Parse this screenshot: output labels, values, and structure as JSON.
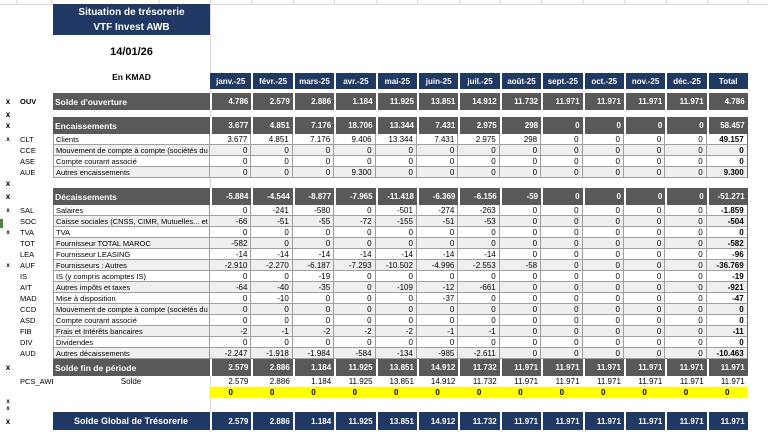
{
  "title": {
    "line1": "Situation de trésorerie",
    "line2": "VTF Invest AWB"
  },
  "date": "14/01/26",
  "unit": "En KMAD",
  "colors": {
    "navy": "#1F3864",
    "section_gray": "#595959",
    "stripe_gray": "#EFEFEF",
    "highlight_yellow": "#FFFF00",
    "green_mark": "#538135"
  },
  "columns": [
    "janv.-25",
    "févr.-25",
    "mars-25",
    "avr.-25",
    "mai-25",
    "juin-25",
    "juil.-25",
    "août-25",
    "sept.-25",
    "oct.-25",
    "nov.-25",
    "déc.-25",
    "Total"
  ],
  "rows": [
    {
      "type": "section",
      "marker": "x",
      "code": "OUV",
      "label": "Solde d'ouverture",
      "values": [
        "4.786",
        "2.579",
        "2.886",
        "1.184",
        "11.925",
        "13.851",
        "14.912",
        "11.732",
        "11.971",
        "11.971",
        "11.971",
        "11.971",
        "4.786"
      ]
    },
    {
      "type": "gap",
      "marker": "x"
    },
    {
      "type": "section",
      "marker": "x",
      "code": "",
      "label": "Encaissements",
      "values": [
        "3.677",
        "4.851",
        "7.176",
        "18.706",
        "13.344",
        "7.431",
        "2.975",
        "298",
        "0",
        "0",
        "0",
        "0",
        "58.457"
      ]
    },
    {
      "type": "data",
      "marker": "x-small",
      "code": "CLT",
      "label": "Clients",
      "values": [
        "3.677",
        "4.851",
        "7.176",
        "9.406",
        "13.344",
        "7.431",
        "2.975",
        "298",
        "0",
        "0",
        "0",
        "0",
        "49.157"
      ]
    },
    {
      "type": "data",
      "marker": "",
      "code": "CCE",
      "label": "Mouvement de compte à compte (sociétés du",
      "values": [
        "0",
        "0",
        "0",
        "0",
        "0",
        "0",
        "0",
        "0",
        "0",
        "0",
        "0",
        "0",
        "0"
      ]
    },
    {
      "type": "data",
      "marker": "",
      "code": "ASE",
      "label": "Compte courant associé",
      "values": [
        "0",
        "0",
        "0",
        "0",
        "0",
        "0",
        "0",
        "0",
        "0",
        "0",
        "0",
        "0",
        "0"
      ]
    },
    {
      "type": "data",
      "marker": "",
      "code": "AUE",
      "label": "Autres encaissements",
      "values": [
        "0",
        "0",
        "0",
        "9.300",
        "0",
        "0",
        "0",
        "0",
        "0",
        "0",
        "0",
        "0",
        "9.300"
      ]
    },
    {
      "type": "gap-mid",
      "marker": "x"
    },
    {
      "type": "section",
      "marker": "x",
      "code": "",
      "label": "Décaissements",
      "values": [
        "-5.884",
        "-4.544",
        "-8.877",
        "-7.965",
        "-11.418",
        "-6.369",
        "-6.156",
        "-59",
        "0",
        "0",
        "0",
        "0",
        "-51.271"
      ]
    },
    {
      "type": "data",
      "marker": "x-small",
      "code": "SAL",
      "label": "Salaires",
      "values": [
        "0",
        "-241",
        "-580",
        "0",
        "-501",
        "-274",
        "-263",
        "0",
        "0",
        "0",
        "0",
        "0",
        "-1.859"
      ]
    },
    {
      "type": "data",
      "marker": "",
      "code": "SOC",
      "label": "Caisse sociales (CNSS, CIMR, Mutuelles... et",
      "values": [
        "-66",
        "-51",
        "-55",
        "-72",
        "-155",
        "-51",
        "-53",
        "0",
        "0",
        "0",
        "0",
        "0",
        "-504"
      ]
    },
    {
      "type": "data",
      "marker": "x-small",
      "code": "TVA",
      "label": "TVA",
      "values": [
        "0",
        "0",
        "0",
        "0",
        "0",
        "0",
        "0",
        "0",
        "0",
        "0",
        "0",
        "0",
        "0"
      ]
    },
    {
      "type": "data",
      "marker": "",
      "code": "TOT",
      "label": "Fournisseur TOTAL MAROC",
      "values": [
        "-582",
        "0",
        "0",
        "0",
        "0",
        "0",
        "0",
        "0",
        "0",
        "0",
        "0",
        "0",
        "-582"
      ]
    },
    {
      "type": "data",
      "marker": "",
      "code": "LEA",
      "label": "Fournisseur LEASING",
      "values": [
        "-14",
        "-14",
        "-14",
        "-14",
        "-14",
        "-14",
        "-14",
        "0",
        "0",
        "0",
        "0",
        "0",
        "-96"
      ]
    },
    {
      "type": "data",
      "marker": "x-small",
      "code": "AUF",
      "label": "Fournisseurs : Autres",
      "values": [
        "-2.910",
        "-2.270",
        "-6.187",
        "-7.293",
        "-10.502",
        "-4.996",
        "-2.553",
        "-58",
        "0",
        "0",
        "0",
        "0",
        "-36.769"
      ]
    },
    {
      "type": "data",
      "marker": "",
      "code": "IS",
      "label": "IS (y compris acomptes IS)",
      "values": [
        "0",
        "0",
        "-19",
        "0",
        "0",
        "0",
        "0",
        "0",
        "0",
        "0",
        "0",
        "0",
        "-19"
      ]
    },
    {
      "type": "data",
      "marker": "",
      "code": "AIT",
      "label": "Autres impôts et taxes",
      "values": [
        "-64",
        "-40",
        "-35",
        "0",
        "-109",
        "-12",
        "-661",
        "0",
        "0",
        "0",
        "0",
        "0",
        "-921"
      ]
    },
    {
      "type": "data",
      "marker": "",
      "code": "MAD",
      "label": "Mise à disposition",
      "values": [
        "0",
        "-10",
        "0",
        "0",
        "0",
        "-37",
        "0",
        "0",
        "0",
        "0",
        "0",
        "0",
        "-47"
      ]
    },
    {
      "type": "data",
      "marker": "",
      "code": "CCD",
      "label": "Mouvement de compte à compte (sociétés du",
      "values": [
        "0",
        "0",
        "0",
        "0",
        "0",
        "0",
        "0",
        "0",
        "0",
        "0",
        "0",
        "0",
        "0"
      ]
    },
    {
      "type": "data",
      "marker": "",
      "code": "ASD",
      "label": "Compte courant associé",
      "values": [
        "0",
        "0",
        "0",
        "0",
        "0",
        "0",
        "0",
        "0",
        "0",
        "0",
        "0",
        "0",
        "0"
      ]
    },
    {
      "type": "data",
      "marker": "",
      "code": "FIB",
      "label": "Frais et Intérêts bancaires",
      "values": [
        "-2",
        "-1",
        "-2",
        "-2",
        "-2",
        "-1",
        "-1",
        "0",
        "0",
        "0",
        "0",
        "0",
        "-11"
      ]
    },
    {
      "type": "data",
      "marker": "",
      "code": "DIV",
      "label": "Dividendes",
      "values": [
        "0",
        "0",
        "0",
        "0",
        "0",
        "0",
        "0",
        "0",
        "0",
        "0",
        "0",
        "0",
        "0"
      ]
    },
    {
      "type": "data",
      "marker": "",
      "code": "AUD",
      "label": "Autres décaissements",
      "values": [
        "-2.247",
        "-1.918",
        "-1.984",
        "-584",
        "-134",
        "-985",
        "-2.611",
        "0",
        "0",
        "0",
        "0",
        "0",
        "-10.463"
      ]
    },
    {
      "type": "section",
      "marker": "x",
      "code": "",
      "label": "Solde fin de période",
      "values": [
        "2.579",
        "2.886",
        "1.184",
        "11.925",
        "13.851",
        "14.912",
        "11.732",
        "11.971",
        "11.971",
        "11.971",
        "11.971",
        "11.971",
        "11.971"
      ]
    },
    {
      "type": "plain",
      "marker": "",
      "code": "PCS_AWE",
      "label": "Solde",
      "values": [
        "2.579",
        "2.886",
        "1.184",
        "11.925",
        "13.851",
        "14.912",
        "11.732",
        "11.971",
        "11.971",
        "11.971",
        "11.971",
        "11.971",
        "11.971"
      ]
    },
    {
      "type": "yellow",
      "marker": "",
      "code": "",
      "label": "",
      "values": [
        "0",
        "0",
        "0",
        "0",
        "0",
        "0",
        "0",
        "0",
        "0",
        "0",
        "0",
        "0",
        "0"
      ]
    },
    {
      "type": "gap",
      "marker": "x-small"
    },
    {
      "type": "gap",
      "marker": "x-small"
    },
    {
      "type": "navy",
      "marker": "x",
      "code": "",
      "label": "Solde Global de Trésorerie",
      "values": [
        "2.579",
        "2.886",
        "1.184",
        "11.925",
        "13.851",
        "14.912",
        "11.732",
        "11.971",
        "11.971",
        "11.971",
        "11.971",
        "11.971",
        "11.971"
      ]
    }
  ]
}
